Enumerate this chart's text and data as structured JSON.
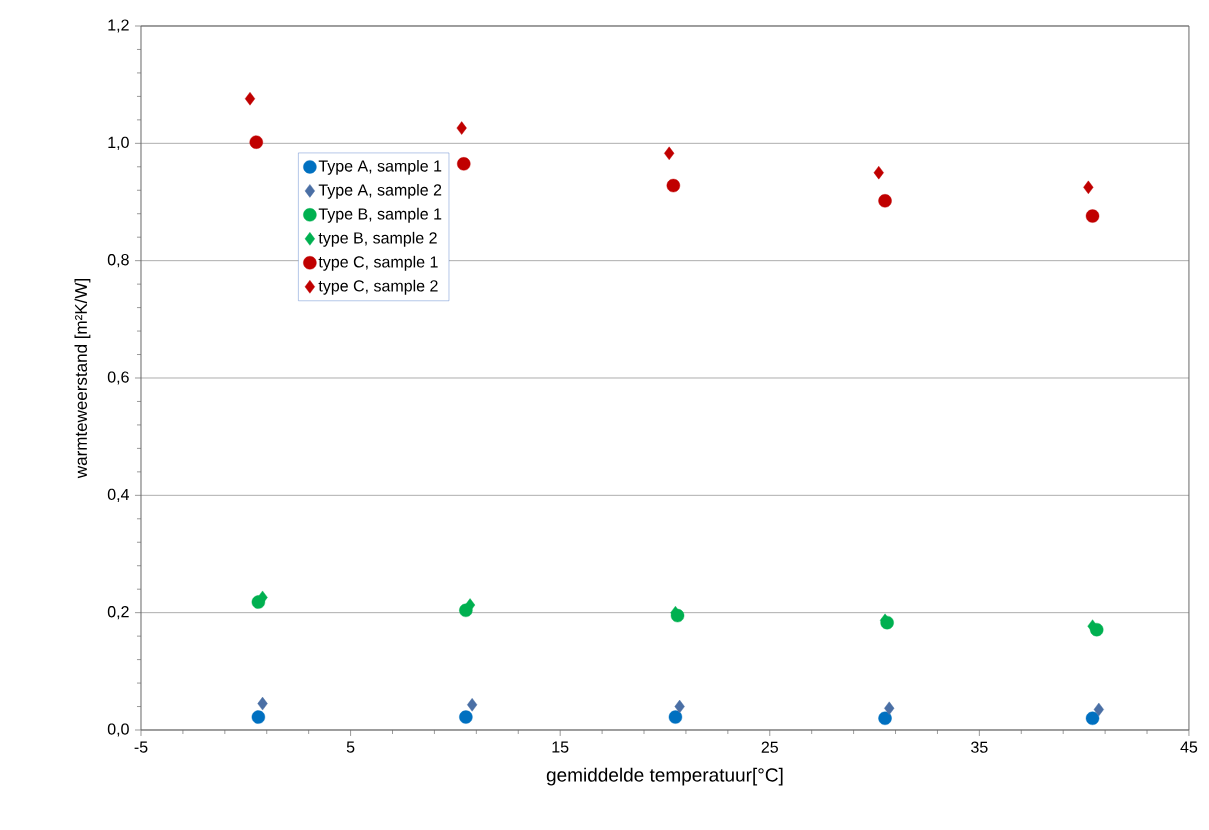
{
  "chart_data": {
    "type": "scatter",
    "xlabel": "gemiddelde temperatuur[°C]",
    "ylabel": "warmteweerstand  [m²K/W]",
    "xlim": [
      -5,
      45
    ],
    "xticks": [
      -5,
      5,
      15,
      25,
      35,
      45
    ],
    "ylim": [
      0,
      1.2
    ],
    "yticks": [
      {
        "value": 0,
        "label": "0,0"
      },
      {
        "value": 0.2,
        "label": "0,2"
      },
      {
        "value": 0.4,
        "label": "0,4"
      },
      {
        "value": 0.6,
        "label": "0,6"
      },
      {
        "value": 0.8,
        "label": "0,8"
      },
      {
        "value": 1.0,
        "label": "1,0"
      },
      {
        "value": 1.2,
        "label": "1,2"
      }
    ],
    "grid": "y",
    "legend": "left",
    "series": [
      {
        "name": "Type A, sample 1",
        "color": "#0070c0",
        "marker": "circle",
        "x": [
          0.6,
          10.5,
          20.5,
          30.5,
          40.4
        ],
        "values": [
          0.022,
          0.022,
          0.022,
          0.02,
          0.02
        ]
      },
      {
        "name": "Type A, sample 2",
        "color": "#4a6fa5",
        "marker": "diamond",
        "x": [
          0.8,
          10.8,
          20.7,
          30.7,
          40.7
        ],
        "values": [
          0.045,
          0.043,
          0.04,
          0.037,
          0.035
        ]
      },
      {
        "name": "Type B, sample 1",
        "color": "#00b050",
        "marker": "circle",
        "x": [
          0.6,
          10.5,
          20.6,
          30.6,
          40.6
        ],
        "values": [
          0.218,
          0.204,
          0.195,
          0.183,
          0.171
        ]
      },
      {
        "name": "type B, sample 2",
        "color": "#00b050",
        "marker": "diamond",
        "x": [
          0.8,
          10.7,
          20.5,
          30.5,
          40.4
        ],
        "values": [
          0.226,
          0.213,
          0.2,
          0.187,
          0.177
        ]
      },
      {
        "name": "type C, sample 1",
        "color": "#c00000",
        "marker": "circle",
        "x": [
          0.5,
          10.4,
          20.4,
          30.5,
          40.4
        ],
        "values": [
          1.002,
          0.965,
          0.928,
          0.902,
          0.876
        ]
      },
      {
        "name": "type C, sample 2",
        "color": "#c00000",
        "marker": "diamond",
        "x": [
          0.2,
          10.3,
          20.2,
          30.2,
          40.2
        ],
        "values": [
          1.076,
          1.026,
          0.983,
          0.95,
          0.925
        ]
      }
    ]
  }
}
